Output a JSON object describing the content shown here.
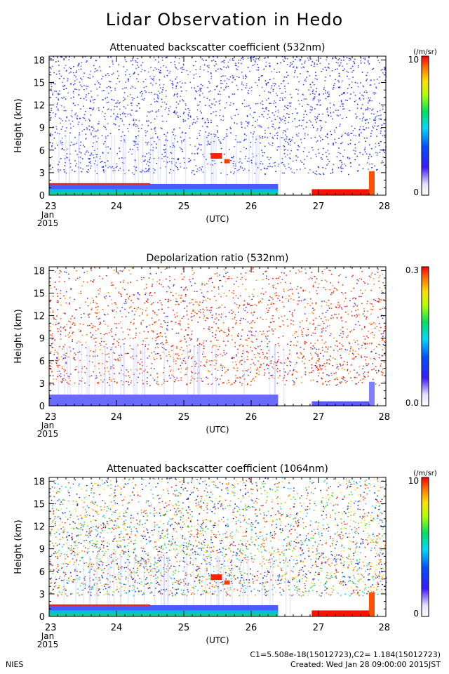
{
  "page": {
    "title": "Lidar Observation in Hedo",
    "footer_left": "NIES",
    "footer_c": "C1=5.508e-18(15012723),C2= 1.184(15012723)",
    "footer_created": "Created: Wed Jan 28 09:00:00 2015JST"
  },
  "chart_data": [
    {
      "type": "heatmap",
      "title": "Attenuated backscatter coefficient (532nm)",
      "xlabel": "(UTC)",
      "ylabel": "Height (km)",
      "x_ticks": [
        "23",
        "24",
        "25",
        "26",
        "27",
        "28"
      ],
      "x_sub": [
        "Jan",
        "2015"
      ],
      "xlim": [
        23,
        28
      ],
      "y_ticks": [
        "0",
        "3",
        "6",
        "9",
        "12",
        "15",
        "18"
      ],
      "ylim": [
        0,
        18.5
      ],
      "colorbar": {
        "max_label": "10",
        "min_label": "0",
        "unit": "(/m/sr)"
      }
    },
    {
      "type": "heatmap",
      "title": "Depolarization ratio (532nm)",
      "xlabel": "(UTC)",
      "ylabel": "Height (km)",
      "x_ticks": [
        "23",
        "24",
        "25",
        "26",
        "27",
        "28"
      ],
      "x_sub": [
        "Jan",
        "2015"
      ],
      "xlim": [
        23,
        28
      ],
      "y_ticks": [
        "0",
        "3",
        "6",
        "9",
        "12",
        "15",
        "18"
      ],
      "ylim": [
        0,
        18.5
      ],
      "colorbar": {
        "max_label": "0.3",
        "min_label": "0.0",
        "unit": ""
      }
    },
    {
      "type": "heatmap",
      "title": "Attenuated backscatter coefficient (1064nm)",
      "xlabel": "(UTC)",
      "ylabel": "Height (km)",
      "x_ticks": [
        "23",
        "24",
        "25",
        "26",
        "27",
        "28"
      ],
      "x_sub": [
        "Jan",
        "2015"
      ],
      "xlim": [
        23,
        28
      ],
      "y_ticks": [
        "0",
        "3",
        "6",
        "9",
        "12",
        "15",
        "18"
      ],
      "ylim": [
        0,
        18.5
      ],
      "colorbar": {
        "max_label": "10",
        "min_label": "0",
        "unit": "(/m/sr)"
      }
    }
  ]
}
